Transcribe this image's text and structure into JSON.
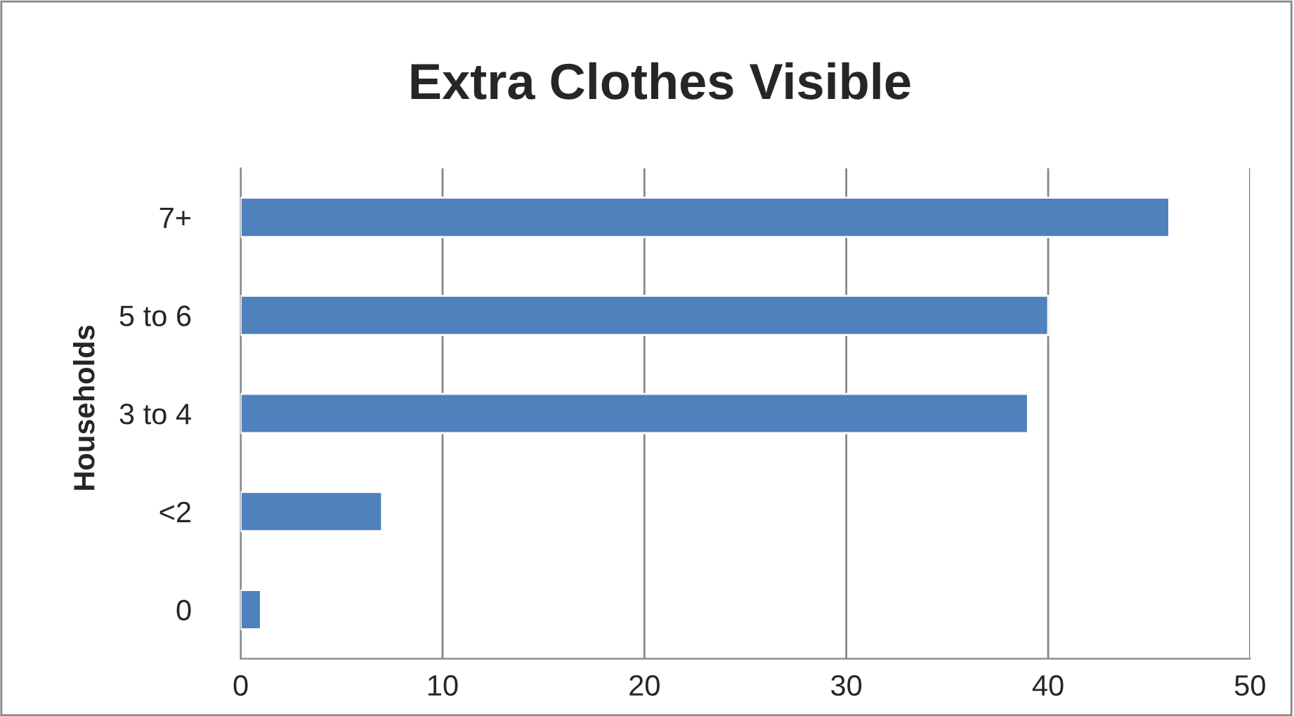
{
  "chart_data": {
    "type": "bar",
    "orientation": "horizontal",
    "title": "Extra Clothes Visible",
    "ylabel": "Households",
    "categories": [
      "7+",
      "5 to 6",
      "3 to 4",
      "<2",
      "0"
    ],
    "values": [
      46,
      40,
      39,
      7,
      1
    ],
    "color": "#4f81bd",
    "xlim": [
      0,
      50
    ],
    "xticks": [
      0,
      10,
      20,
      30,
      40,
      50
    ],
    "grid": "x",
    "legend": false
  }
}
